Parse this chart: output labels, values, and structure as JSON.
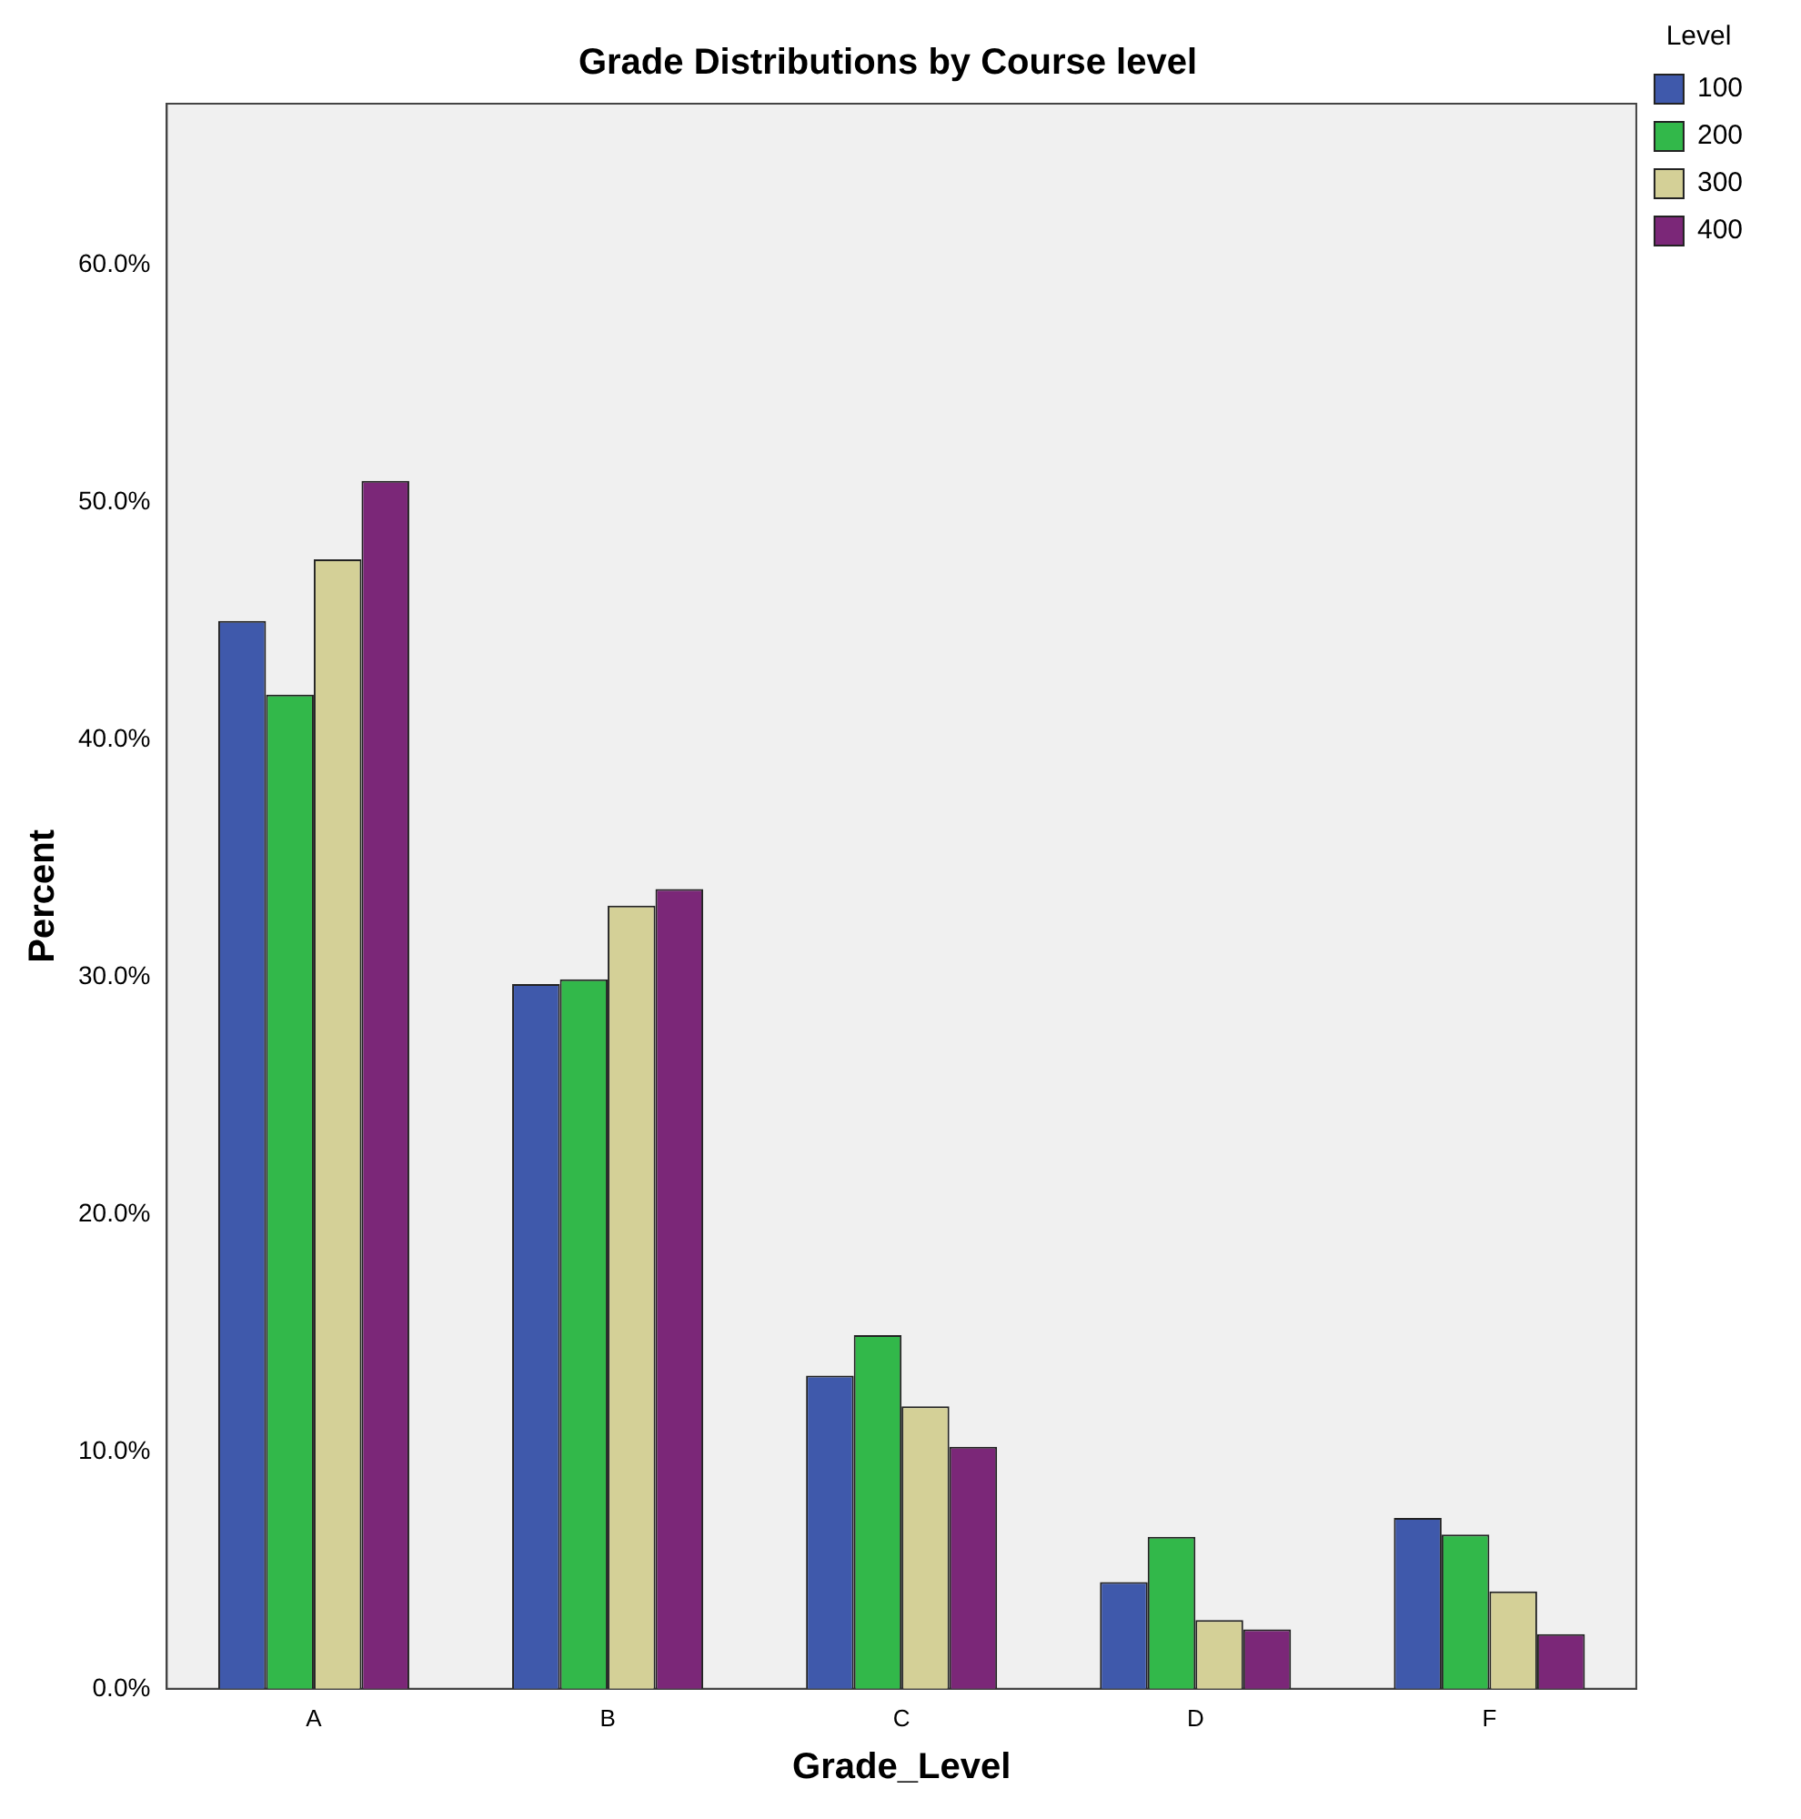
{
  "chart_data": {
    "type": "bar",
    "title": "Grade Distributions by Course level",
    "xlabel": "Grade_Level",
    "ylabel": "Percent",
    "legend_title": "Level",
    "categories": [
      "A",
      "B",
      "C",
      "D",
      "F"
    ],
    "series": [
      {
        "name": "100",
        "color": "#3f59ab",
        "values": [
          45.0,
          29.7,
          13.2,
          4.5,
          7.2
        ]
      },
      {
        "name": "200",
        "color": "#32b84a",
        "values": [
          41.9,
          29.9,
          14.9,
          6.4,
          6.5
        ]
      },
      {
        "name": "300",
        "color": "#d4d097",
        "values": [
          47.6,
          33.0,
          11.9,
          2.9,
          4.1
        ]
      },
      {
        "name": "400",
        "color": "#7b2778",
        "values": [
          50.9,
          33.7,
          10.2,
          2.5,
          2.3
        ]
      }
    ],
    "ylim": [
      0,
      66.8
    ],
    "yticks": [
      {
        "value": 0,
        "label": "0.0%"
      },
      {
        "value": 10,
        "label": "10.0%"
      },
      {
        "value": 20,
        "label": "20.0%"
      },
      {
        "value": 30,
        "label": "30.0%"
      },
      {
        "value": 40,
        "label": "40.0%"
      },
      {
        "value": 50,
        "label": "50.0%"
      },
      {
        "value": 60,
        "label": "60.0%"
      }
    ],
    "grid": false,
    "legend": "top right"
  }
}
